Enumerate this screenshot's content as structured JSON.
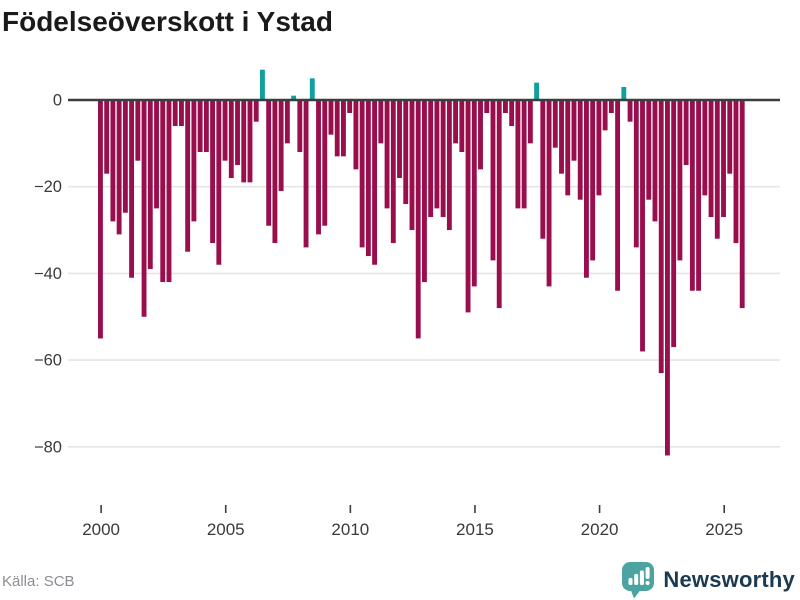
{
  "header": {
    "title": "Födelseöverskott i Ystad"
  },
  "footer": {
    "source_label": "Källa: SCB",
    "brand": {
      "name": "Newsworthy",
      "icon": "newsworthy-speech-bubble-chart-icon"
    }
  },
  "colors": {
    "background": "#ffffff",
    "title_text": "#1a1a1a",
    "negative_bar": "#990f4d",
    "positive_bar": "#11a0a0",
    "zero_line": "#3d3d3d",
    "gridline": "#e4e4e4",
    "axis_text": "#3a3a3a",
    "tick_mark": "#3d3d3d",
    "source_text": "#8c8c94",
    "brand_text": "#1b3950",
    "brand_icon": "#4ba4a1"
  },
  "chart_data": {
    "type": "bar",
    "title": "Födelseöverskott i Ystad",
    "frequency": "quarterly",
    "period_start": "2000-Q1",
    "period_end": "2025-Q4",
    "xlabel": "",
    "ylabel": "",
    "grid": "horizontal",
    "legend": "none",
    "ylim": [
      -86,
      9
    ],
    "y_ticks": [
      0,
      -20,
      -40,
      -60,
      -80
    ],
    "y_tick_labels": [
      "0",
      "−20",
      "−40",
      "−60",
      "−80"
    ],
    "x_tick_years": [
      2000,
      2005,
      2010,
      2015,
      2020,
      2025
    ],
    "x_tick_labels": [
      "2000",
      "2005",
      "2010",
      "2015",
      "2020",
      "2025"
    ],
    "values": [
      -55,
      -17,
      -28,
      -31,
      -26,
      -41,
      -14,
      -50,
      -39,
      -25,
      -42,
      -42,
      -6,
      -6,
      -35,
      -28,
      -12,
      -12,
      -33,
      -38,
      -14,
      -18,
      -15,
      -19,
      -19,
      -5,
      7,
      -29,
      -33,
      -21,
      -10,
      1,
      -12,
      -34,
      5,
      -31,
      -29,
      -8,
      -13,
      -13,
      -3,
      -16,
      -34,
      -36,
      -38,
      -10,
      -25,
      -33,
      -18,
      -24,
      -30,
      -55,
      -42,
      -27,
      -25,
      -27,
      -30,
      -10,
      -12,
      -49,
      -43,
      -16,
      -3,
      -37,
      -48,
      -3,
      -6,
      -25,
      -25,
      -10,
      4,
      -32,
      -43,
      -11,
      -17,
      -22,
      -14,
      -23,
      -41,
      -37,
      -22,
      -7,
      -3,
      -44,
      3,
      -5,
      -34,
      -58,
      -23,
      -28,
      -63,
      -82,
      -57,
      -37,
      -15,
      -44,
      -44,
      -22,
      -27,
      -32,
      -27,
      -17,
      -33,
      -48
    ]
  }
}
